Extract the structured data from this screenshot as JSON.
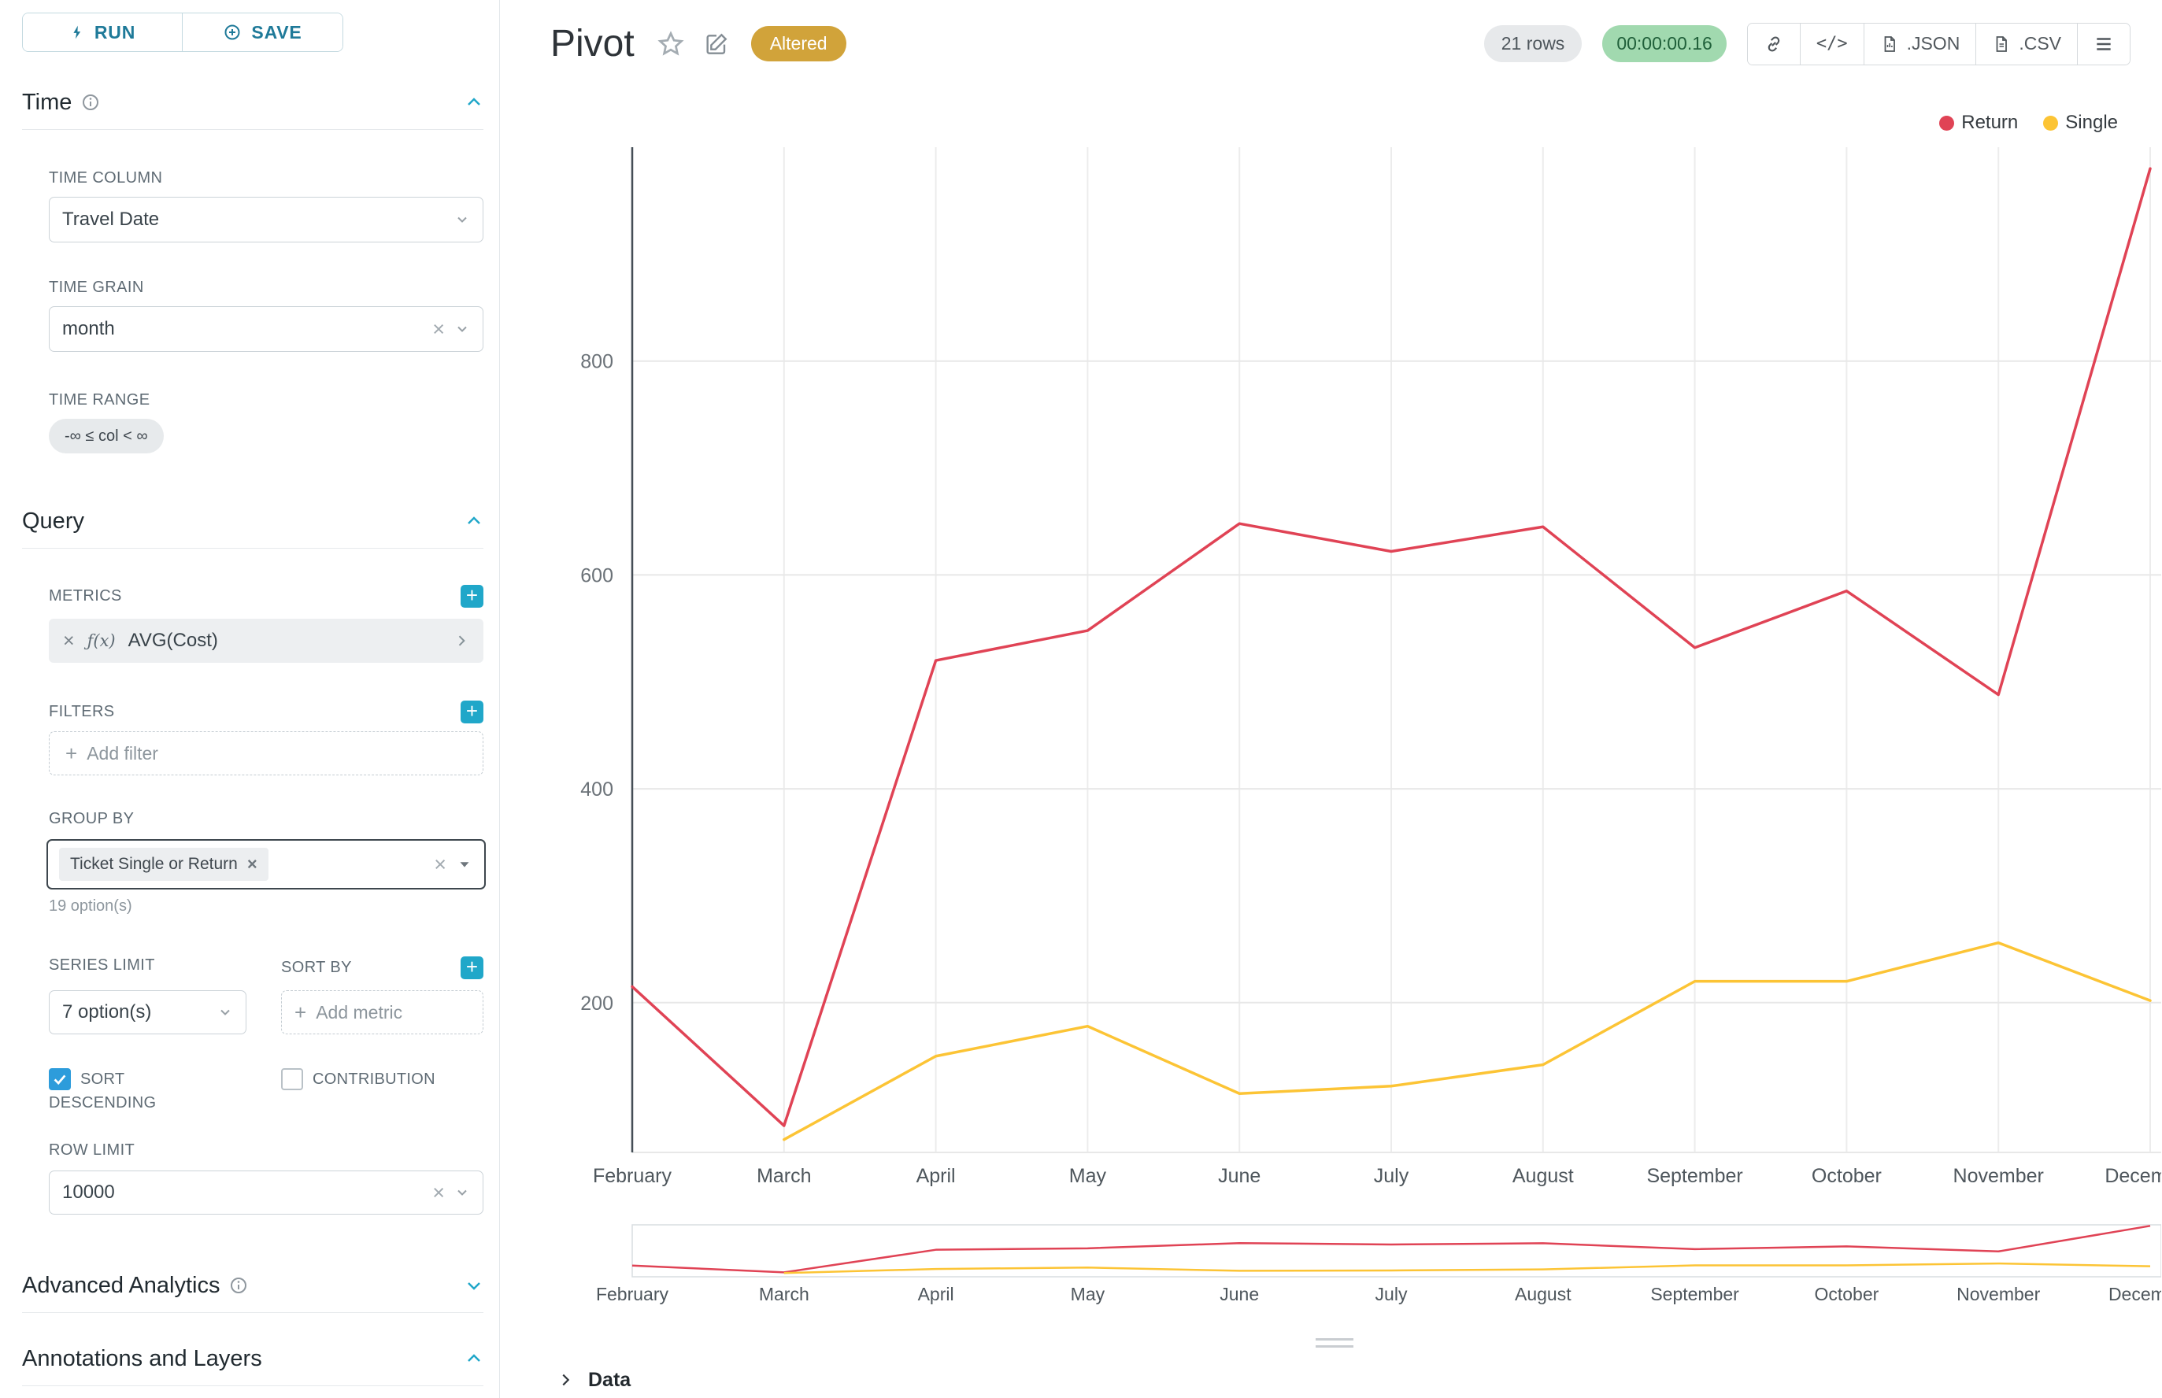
{
  "sidebar": {
    "run_label": "RUN",
    "save_label": "SAVE",
    "time": {
      "title": "Time",
      "time_column_label": "TIME COLUMN",
      "time_column_value": "Travel Date",
      "time_grain_label": "TIME GRAIN",
      "time_grain_value": "month",
      "time_range_label": "TIME RANGE",
      "time_range_value": "-∞ ≤ col < ∞"
    },
    "query": {
      "title": "Query",
      "metrics_label": "METRICS",
      "metric_fx": "ƒ(x)",
      "metric_value": "AVG(Cost)",
      "filters_label": "FILTERS",
      "add_filter_label": "Add filter",
      "group_by_label": "GROUP BY",
      "group_by_tag": "Ticket Single or Return",
      "group_by_hint": "19 option(s)",
      "series_limit_label": "SERIES LIMIT",
      "series_limit_value": "7 option(s)",
      "sort_by_label": "SORT BY",
      "add_metric_label": "Add metric",
      "sort_descending_label": "SORT DESCENDING",
      "contribution_label": "CONTRIBUTION",
      "row_limit_label": "ROW LIMIT",
      "row_limit_value": "10000"
    },
    "advanced_analytics_title": "Advanced Analytics",
    "annotations_title": "Annotations and Layers"
  },
  "header": {
    "title": "Pivot",
    "altered_badge": "Altered",
    "row_count": "21 rows",
    "timer": "00:00:00.16",
    "json_label": ".JSON",
    "csv_label": ".CSV"
  },
  "chart_data": {
    "type": "line",
    "title": "Pivot",
    "categories": [
      "February",
      "March",
      "April",
      "May",
      "June",
      "July",
      "August",
      "September",
      "October",
      "November",
      "December"
    ],
    "series": [
      {
        "name": "Return",
        "color": "#e04355",
        "values": [
          215,
          85,
          520,
          548,
          648,
          622,
          645,
          532,
          585,
          488,
          980
        ]
      },
      {
        "name": "Single",
        "color": "#fcc435",
        "values": [
          null,
          72,
          150,
          178,
          115,
          122,
          142,
          220,
          220,
          256,
          202
        ]
      }
    ],
    "yticks": [
      200,
      400,
      600,
      800
    ],
    "ylim": [
      60,
      1000
    ],
    "xlabel": "",
    "ylabel": "",
    "grid": true,
    "legend_position": "top-right",
    "has_minimap": true
  },
  "data_panel": {
    "title": "Data"
  },
  "colors": {
    "accent": "#20a7c9",
    "altered_bg": "#d1a33a",
    "timer_bg": "#a1d9af",
    "series_return": "#e04355",
    "series_single": "#fcc435"
  }
}
